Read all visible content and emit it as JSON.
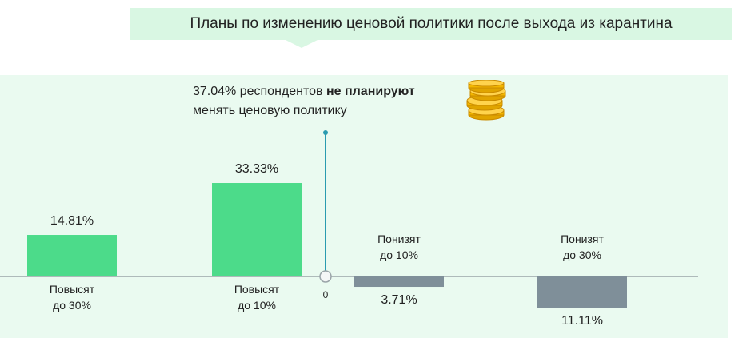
{
  "title": "Планы по изменению ценовой политики после выхода из карантина",
  "callout": {
    "value": "37.04%",
    "text_before": " респондентов ",
    "text_bold": "не планируют",
    "text_line2": "менять ценовую политику"
  },
  "zero_label": "0",
  "colors": {
    "increase": "#4cdb8a",
    "decrease": "#7f8f99",
    "pin": "#2a9bb0",
    "banner": "#d9f7e3",
    "panel": "#eafaf0"
  },
  "icons": {
    "coins": "coin-stack-icon"
  },
  "chart_data": {
    "type": "bar",
    "title": "Планы по изменению ценовой политики после выхода из карантина",
    "categories": [
      [
        "Повысят",
        "до 30%"
      ],
      [
        "Повысят",
        "до 10%"
      ],
      [
        "Понизят",
        "до 10%"
      ],
      [
        "Понизят",
        "до 30%"
      ]
    ],
    "values": [
      14.81,
      33.33,
      -3.71,
      -11.11
    ],
    "value_labels": [
      "14.81%",
      "33.33%",
      "3.71%",
      "11.11%"
    ],
    "unchanged": {
      "value": 37.04,
      "label": "37.04%"
    },
    "ylim": [
      -15,
      40
    ],
    "grid": false,
    "legend": "none"
  }
}
